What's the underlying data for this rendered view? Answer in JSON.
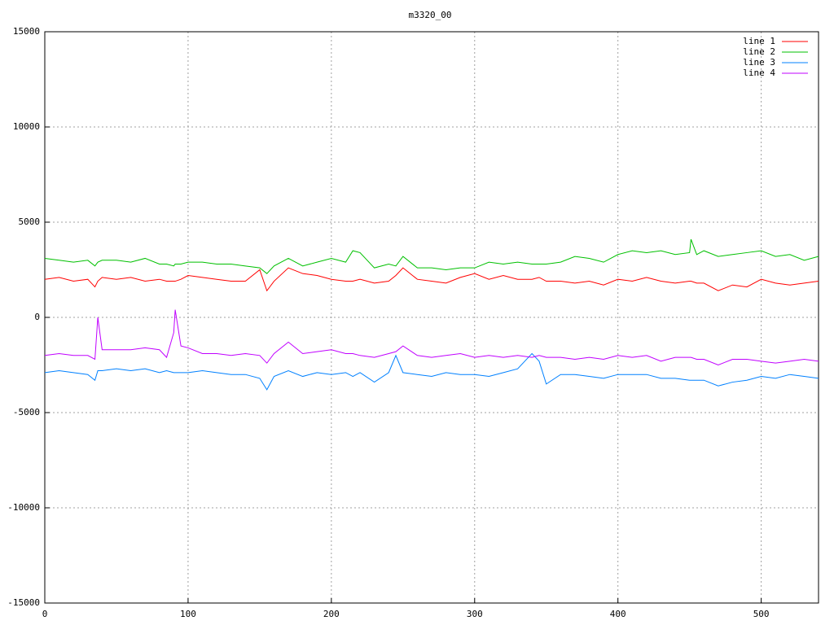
{
  "chart_data": {
    "type": "line",
    "title": "m3320_00",
    "x": [
      0,
      10,
      20,
      30,
      35,
      37,
      40,
      50,
      60,
      70,
      80,
      85,
      90,
      91,
      95,
      100,
      110,
      120,
      130,
      140,
      150,
      155,
      160,
      170,
      180,
      190,
      200,
      210,
      215,
      220,
      230,
      240,
      245,
      250,
      260,
      270,
      280,
      290,
      300,
      310,
      320,
      330,
      340,
      345,
      350,
      360,
      370,
      380,
      390,
      400,
      410,
      420,
      430,
      440,
      450,
      451,
      455,
      460,
      470,
      480,
      490,
      500,
      510,
      520,
      530,
      540
    ],
    "series": [
      {
        "name": "line 1",
        "color": "#ff0000",
        "values": [
          2000,
          2100,
          1900,
          2000,
          1600,
          1900,
          2100,
          2000,
          2100,
          1900,
          2000,
          1900,
          1900,
          1900,
          2000,
          2200,
          2100,
          2000,
          1900,
          1900,
          2500,
          1400,
          1900,
          2600,
          2300,
          2200,
          2000,
          1900,
          1900,
          2000,
          1800,
          1900,
          2200,
          2600,
          2000,
          1900,
          1800,
          2100,
          2300,
          2000,
          2200,
          2000,
          2000,
          2100,
          1900,
          1900,
          1800,
          1900,
          1700,
          2000,
          1900,
          2100,
          1900,
          1800,
          1900,
          1900,
          1800,
          1800,
          1400,
          1700,
          1600,
          2000,
          1800,
          1700,
          1800,
          1900
        ]
      },
      {
        "name": "line 2",
        "color": "#00c000",
        "values": [
          3100,
          3000,
          2900,
          3000,
          2700,
          2900,
          3000,
          3000,
          2900,
          3100,
          2800,
          2800,
          2700,
          2800,
          2800,
          2900,
          2900,
          2800,
          2800,
          2700,
          2600,
          2300,
          2700,
          3100,
          2700,
          2900,
          3100,
          2900,
          3500,
          3400,
          2600,
          2800,
          2700,
          3200,
          2600,
          2600,
          2500,
          2600,
          2600,
          2900,
          2800,
          2900,
          2800,
          2800,
          2800,
          2900,
          3200,
          3100,
          2900,
          3300,
          3500,
          3400,
          3500,
          3300,
          3400,
          4100,
          3300,
          3500,
          3200,
          3300,
          3400,
          3500,
          3200,
          3300,
          3000,
          3200
        ]
      },
      {
        "name": "line 3",
        "color": "#0080ff",
        "values": [
          -2900,
          -2800,
          -2900,
          -3000,
          -3300,
          -2800,
          -2800,
          -2700,
          -2800,
          -2700,
          -2900,
          -2800,
          -2900,
          -2900,
          -2900,
          -2900,
          -2800,
          -2900,
          -3000,
          -3000,
          -3200,
          -3800,
          -3100,
          -2800,
          -3100,
          -2900,
          -3000,
          -2900,
          -3100,
          -2900,
          -3400,
          -2900,
          -2000,
          -2900,
          -3000,
          -3100,
          -2900,
          -3000,
          -3000,
          -3100,
          -2900,
          -2700,
          -1900,
          -2300,
          -3500,
          -3000,
          -3000,
          -3100,
          -3200,
          -3000,
          -3000,
          -3000,
          -3200,
          -3200,
          -3300,
          -3300,
          -3300,
          -3300,
          -3600,
          -3400,
          -3300,
          -3100,
          -3200,
          -3000,
          -3100,
          -3200
        ]
      },
      {
        "name": "line 4",
        "color": "#c000ff",
        "values": [
          -2000,
          -1900,
          -2000,
          -2000,
          -2200,
          0,
          -1700,
          -1700,
          -1700,
          -1600,
          -1700,
          -2100,
          -800,
          400,
          -1500,
          -1600,
          -1900,
          -1900,
          -2000,
          -1900,
          -2000,
          -2400,
          -1900,
          -1300,
          -1900,
          -1800,
          -1700,
          -1900,
          -1900,
          -2000,
          -2100,
          -1900,
          -1800,
          -1500,
          -2000,
          -2100,
          -2000,
          -1900,
          -2100,
          -2000,
          -2100,
          -2000,
          -2100,
          -2000,
          -2100,
          -2100,
          -2200,
          -2100,
          -2200,
          -2000,
          -2100,
          -2000,
          -2300,
          -2100,
          -2100,
          -2100,
          -2200,
          -2200,
          -2500,
          -2200,
          -2200,
          -2300,
          -2400,
          -2300,
          -2200,
          -2300
        ]
      }
    ],
    "xlim": [
      0,
      540
    ],
    "ylim": [
      -15000,
      15000
    ],
    "xticks": [
      0,
      100,
      200,
      300,
      400,
      500
    ],
    "yticks": [
      -15000,
      -10000,
      -5000,
      0,
      5000,
      10000,
      15000
    ],
    "grid": true,
    "legend": "top-right"
  }
}
